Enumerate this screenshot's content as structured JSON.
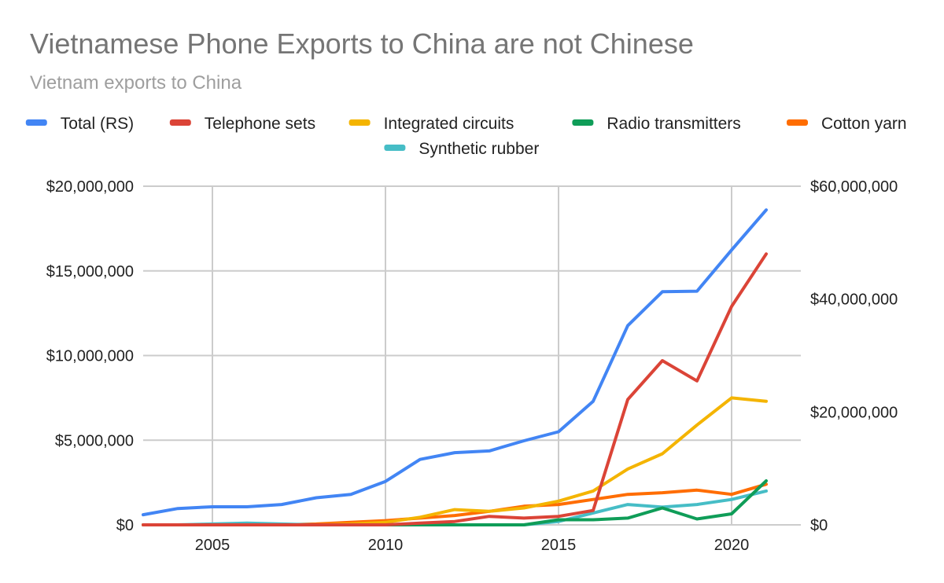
{
  "chart_data": {
    "type": "line",
    "title": "Vietnamese Phone Exports to China are not Chinese",
    "subtitle": "Vietnam exports to China",
    "legend_position": "top",
    "grid": true,
    "x": [
      2003,
      2004,
      2005,
      2006,
      2007,
      2008,
      2009,
      2010,
      2011,
      2012,
      2013,
      2014,
      2015,
      2016,
      2017,
      2018,
      2019,
      2020,
      2021
    ],
    "xlim": [
      2003,
      2022
    ],
    "x_ticks": [
      2005,
      2010,
      2015,
      2020
    ],
    "x_tick_labels": [
      "2005",
      "2010",
      "2015",
      "2020"
    ],
    "left_axis": {
      "ylim": [
        0,
        20000000
      ],
      "ticks": [
        0,
        5000000,
        10000000,
        15000000,
        20000000
      ],
      "tick_labels": [
        "$0",
        "$5,000,000",
        "$10,000,000",
        "$15,000,000",
        "$20,000,000"
      ]
    },
    "right_axis": {
      "ylim": [
        0,
        60000000
      ],
      "ticks": [
        0,
        20000000,
        40000000,
        60000000
      ],
      "tick_labels": [
        "$0",
        "$20,000,000",
        "$40,000,000",
        "$60,000,000"
      ]
    },
    "series": [
      {
        "name": "Total (RS)",
        "axis": "right",
        "color": "#4285f4",
        "values": [
          1800000,
          2900000,
          3200000,
          3200000,
          3600000,
          4800000,
          5400000,
          7700000,
          11600000,
          12800000,
          13100000,
          14900000,
          16500000,
          21900000,
          35300000,
          41300000,
          41400000,
          48700000,
          55800000
        ]
      },
      {
        "name": "Telephone sets",
        "axis": "left",
        "color": "#db4437",
        "values": [
          0,
          0,
          0,
          0,
          0,
          0,
          0,
          0,
          100000,
          200000,
          500000,
          400000,
          500000,
          850000,
          7400000,
          9700000,
          8500000,
          12900000,
          16000000
        ]
      },
      {
        "name": "Integrated circuits",
        "axis": "left",
        "color": "#f4b400",
        "values": [
          0,
          0,
          0,
          0,
          0,
          0,
          50000,
          150000,
          450000,
          900000,
          800000,
          1000000,
          1400000,
          2000000,
          3300000,
          4200000,
          5900000,
          7500000,
          7300000
        ]
      },
      {
        "name": "Radio transmitters",
        "axis": "left",
        "color": "#0f9d58",
        "values": [
          0,
          0,
          0,
          0,
          0,
          0,
          0,
          0,
          0,
          0,
          0,
          0,
          300000,
          300000,
          400000,
          1000000,
          350000,
          650000,
          2600000
        ]
      },
      {
        "name": "Cotton yarn",
        "axis": "left",
        "color": "#ff6d01",
        "values": [
          0,
          0,
          0,
          0,
          0,
          50000,
          150000,
          250000,
          400000,
          550000,
          800000,
          1100000,
          1200000,
          1500000,
          1800000,
          1900000,
          2050000,
          1800000,
          2400000
        ]
      },
      {
        "name": "Synthetic rubber",
        "axis": "left",
        "color": "#46bdc6",
        "values": [
          0,
          0,
          50000,
          100000,
          50000,
          0,
          0,
          0,
          0,
          0,
          0,
          0,
          200000,
          700000,
          1200000,
          1050000,
          1200000,
          1500000,
          2000000
        ]
      }
    ]
  }
}
